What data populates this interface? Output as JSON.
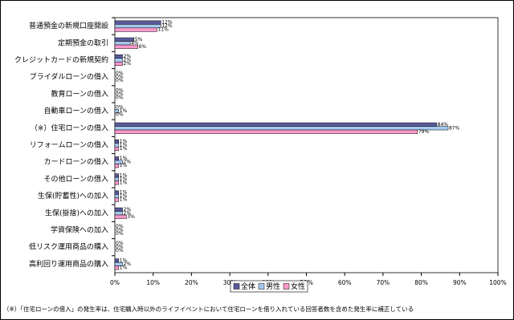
{
  "chart_data": {
    "type": "bar",
    "orientation": "horizontal",
    "categories": [
      "普通預金の新規口座開設",
      "定期預金の取引",
      "クレジットカードの新規契約",
      "ブライダルローンの借入",
      "教育ローンの借入",
      "自動車ローンの借入",
      "（※）住宅ローンの借入",
      "リフォームローンの借入",
      "カードローンの借入",
      "その他ローンの借入",
      "生保(貯蓄性)への加入",
      "生保(掛捨)への加入",
      "学資保険への加入",
      "低リスク運用商品の購入",
      "高利回り運用商品の購入"
    ],
    "series": [
      {
        "name": "全体",
        "color": "#5a5a9c",
        "values": [
          12,
          5,
          2,
          0,
          0,
          0,
          84,
          1,
          1,
          1,
          1,
          2,
          0,
          0,
          1
        ],
        "value_labels": [
          "12%",
          "5%",
          "2%",
          "0%",
          "0%",
          "0%",
          "84%",
          "1%",
          "1%",
          "1%",
          "1%",
          "2%",
          "0%",
          "0%",
          "1%"
        ]
      },
      {
        "name": "男性",
        "color": "#a6c8f0",
        "values": [
          12,
          4,
          2,
          0,
          0,
          1,
          87,
          1,
          2,
          1,
          1,
          2,
          0,
          0,
          2
        ],
        "value_labels": [
          "12%",
          "4%",
          "2%",
          "0%",
          "0%",
          "1%",
          "87%",
          "1%",
          "2%",
          "1%",
          "1%",
          "2%",
          "0%",
          "0%",
          "2%"
        ]
      },
      {
        "name": "女性",
        "color": "#ff99cc",
        "values": [
          11,
          6,
          2,
          0,
          0,
          0,
          79,
          1,
          1,
          1,
          1,
          3,
          0,
          0,
          1
        ],
        "value_labels": [
          "11%",
          "6%",
          "2%",
          "0%",
          "0%",
          "0%",
          "79%",
          "1%",
          "1%",
          "1%",
          "1%",
          "3%",
          "0%",
          "0%",
          "1%"
        ]
      }
    ],
    "xlim": [
      0,
      100
    ],
    "xticks": [
      {
        "value": 0,
        "label": "0%"
      },
      {
        "value": 10,
        "label": "10%"
      },
      {
        "value": 20,
        "label": "20%"
      },
      {
        "value": 30,
        "label": "30%"
      },
      {
        "value": 40,
        "label": "40%"
      },
      {
        "value": 50,
        "label": "50%"
      },
      {
        "value": 60,
        "label": "60%"
      },
      {
        "value": 70,
        "label": "70%"
      },
      {
        "value": 80,
        "label": "80%"
      },
      {
        "value": 90,
        "label": "90%"
      },
      {
        "value": 100,
        "label": "100%"
      }
    ],
    "legend": "bottom",
    "footnote": "（※）「住宅ローンの借入」の発生率は、住宅購入時以外のライフイベントにおいて住宅ローンを借り入れている回答者数を含めた発生率に補正している"
  }
}
